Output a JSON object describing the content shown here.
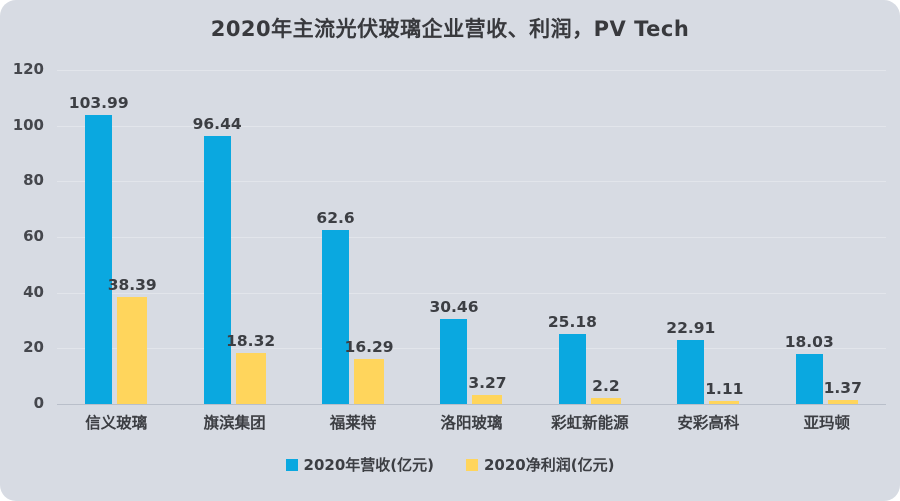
{
  "card": {
    "title": "2020年主流光伏玻璃企业营收、利润，PV Tech"
  },
  "chart_data": {
    "type": "bar",
    "title": "2020年主流光伏玻璃企业营收、利润，PV Tech",
    "categories": [
      "信义玻璃",
      "旗滨集团",
      "福莱特",
      "洛阳玻璃",
      "彩虹新能源",
      "安彩高科",
      "亚玛顿"
    ],
    "series": [
      {
        "name": "2020年营收(亿元)",
        "color": "#0aa8e0",
        "values": [
          103.99,
          96.44,
          62.6,
          30.46,
          25.18,
          22.91,
          18.03
        ]
      },
      {
        "name": "2020净利润(亿元)",
        "color": "#ffd55c",
        "values": [
          38.39,
          18.32,
          16.29,
          3.27,
          2.2,
          1.11,
          1.37
        ]
      }
    ],
    "xlabel": "",
    "ylabel": "",
    "ylim": [
      0,
      120
    ],
    "yticks": [
      0,
      20,
      40,
      60,
      80,
      100,
      120
    ],
    "grid": true,
    "legend_position": "bottom",
    "data_labels": true
  },
  "colors": {
    "background": "#d7dbe3",
    "revenue_bar": "#0aa8e0",
    "profit_bar": "#ffd55c",
    "text": "#3c3e43",
    "gridline": "#e2e5eb",
    "axis_line": "#b9bfca"
  }
}
